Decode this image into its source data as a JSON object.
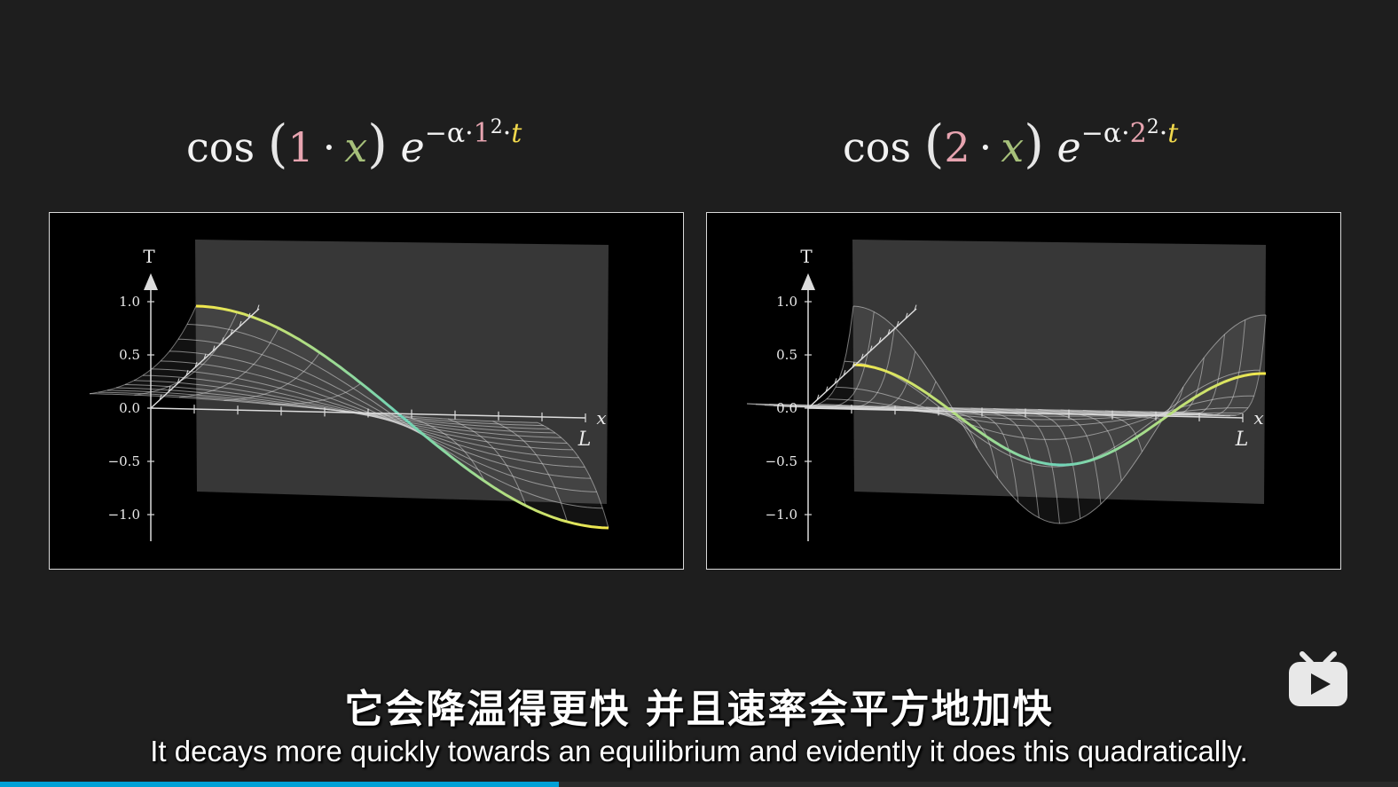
{
  "formulas": [
    {
      "fn": "cos",
      "k": "1",
      "dot": "·",
      "var": "x",
      "exp_base": "e",
      "exp_prefix": "−α·",
      "exp_k": "1",
      "exp_pow": "2",
      "exp_dot": "·",
      "exp_t": "t"
    },
    {
      "fn": "cos",
      "k": "2",
      "dot": "·",
      "var": "x",
      "exp_base": "e",
      "exp_prefix": "−α·",
      "exp_k": "2",
      "exp_pow": "2",
      "exp_dot": "·",
      "exp_t": "t"
    }
  ],
  "plots": [
    {
      "axis_label": "T",
      "x_var": "x",
      "x_end_label": "L",
      "y_ticks": [
        "1.0",
        "0.5",
        "0.0",
        "−0.5",
        "−1.0"
      ],
      "mode": 1
    },
    {
      "axis_label": "T",
      "x_var": "x",
      "x_end_label": "L",
      "y_ticks": [
        "1.0",
        "0.5",
        "0.0",
        "−0.5",
        "−1.0"
      ],
      "mode": 2
    }
  ],
  "subtitles": {
    "chinese": "它会降温得更快  并且速率会平方地加快",
    "english": "It decays more quickly towards an equilibrium and evidently it does this quadratically."
  },
  "player": {
    "logo_icon": "bilibili-tv-icon",
    "progress_fraction": 0.4,
    "progress_color": "#00a1d6"
  }
}
